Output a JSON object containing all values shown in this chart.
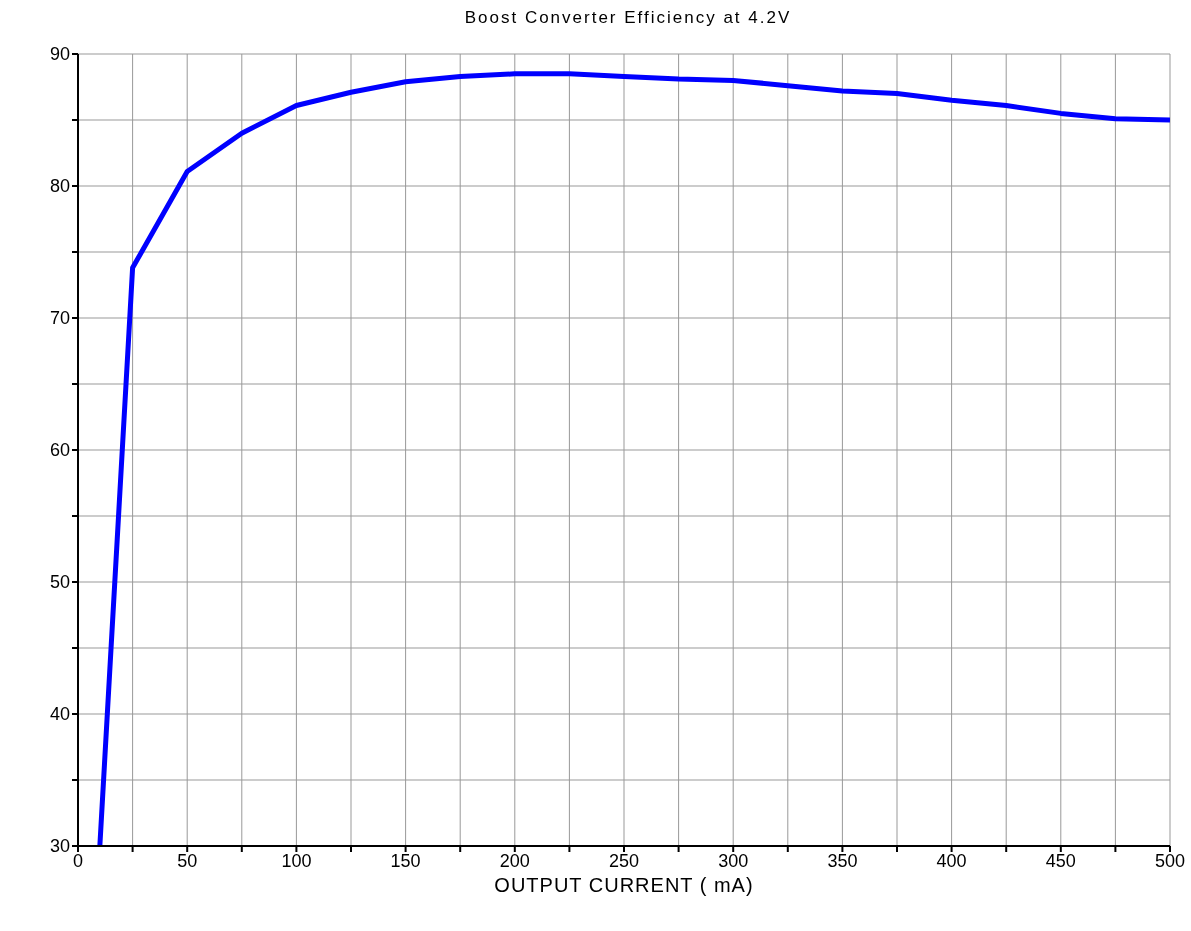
{
  "chart_data": {
    "type": "line",
    "title": "Boost Converter Efficiency at 4.2V",
    "xlabel": "OUTPUT CURRENT ( mA)",
    "x": [
      10,
      25,
      50,
      75,
      100,
      125,
      150,
      175,
      200,
      225,
      250,
      275,
      300,
      325,
      350,
      375,
      400,
      425,
      450,
      475,
      500
    ],
    "series": [
      {
        "color": "#0000ff",
        "values": [
          30,
          73.8,
          81.1,
          84.0,
          86.1,
          87.1,
          87.9,
          88.3,
          88.5,
          88.5,
          88.3,
          88.1,
          88.0,
          87.6,
          87.2,
          87.0,
          86.5,
          86.1,
          85.5,
          85.1,
          85.0
        ]
      }
    ],
    "xlim": [
      0,
      500
    ],
    "xticks": [
      0,
      {
        "value": 25,
        "label": null
      },
      50,
      {
        "value": 75,
        "label": null
      },
      100,
      {
        "value": 125,
        "label": null
      },
      150,
      {
        "value": 175,
        "label": null
      },
      200,
      {
        "value": 225,
        "label": null
      },
      250,
      {
        "value": 275,
        "label": null
      },
      300,
      {
        "value": 325,
        "label": null
      },
      350,
      {
        "value": 375,
        "label": null
      },
      400,
      {
        "value": 425,
        "label": null
      },
      450,
      {
        "value": 475,
        "label": null
      },
      500
    ],
    "ylim": [
      30,
      90
    ],
    "yticks": [
      30,
      {
        "value": 35,
        "label": null
      },
      40,
      {
        "value": 45,
        "label": null
      },
      50,
      {
        "value": 55,
        "label": null
      },
      60,
      {
        "value": 65,
        "label": null
      },
      70,
      {
        "value": 75,
        "label": null
      },
      80,
      {
        "value": 85,
        "label": null
      },
      90
    ],
    "grid": true,
    "legend": false,
    "marker": "none",
    "line_style": "solid"
  }
}
